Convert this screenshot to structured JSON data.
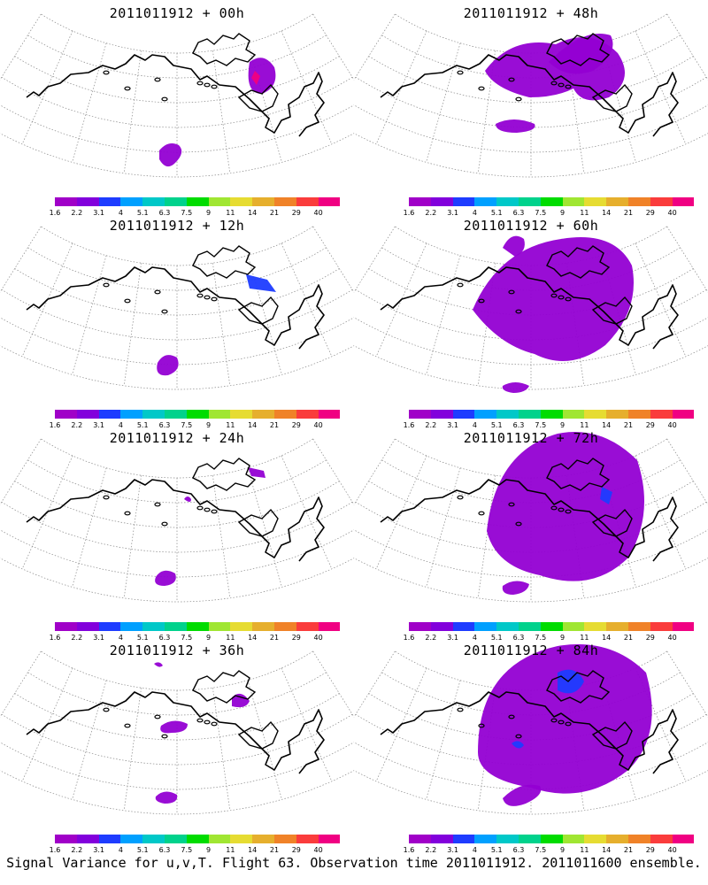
{
  "panels": [
    {
      "title": "2011011912 + 00h",
      "variance": "blob00"
    },
    {
      "title": "2011011912 + 48h",
      "variance": "blob48"
    },
    {
      "title": "2011011912 + 12h",
      "variance": "blob12"
    },
    {
      "title": "2011011912 + 60h",
      "variance": "blob60"
    },
    {
      "title": "2011011912 + 24h",
      "variance": "blob24"
    },
    {
      "title": "2011011912 + 72h",
      "variance": "blob72"
    },
    {
      "title": "2011011912 + 36h",
      "variance": "blob36"
    },
    {
      "title": "2011011912 + 84h",
      "variance": "blob84"
    }
  ],
  "colorbar": {
    "labels": [
      "1.6",
      "2.2",
      "3.1",
      "4",
      "5.1",
      "6.3",
      "7.5",
      "9",
      "11",
      "14",
      "21",
      "29",
      "40"
    ],
    "colors": [
      "#a000c8",
      "#8200dc",
      "#1e3cff",
      "#00a0ff",
      "#00c8c8",
      "#00d28c",
      "#00dc00",
      "#a0e632",
      "#e6dc32",
      "#e6af2d",
      "#f08228",
      "#fa3c3c",
      "#f00082"
    ]
  },
  "caption": "Signal Variance for u,v,T. Flight 63. Observation time 2011011912. 2011011600 ensemble."
}
